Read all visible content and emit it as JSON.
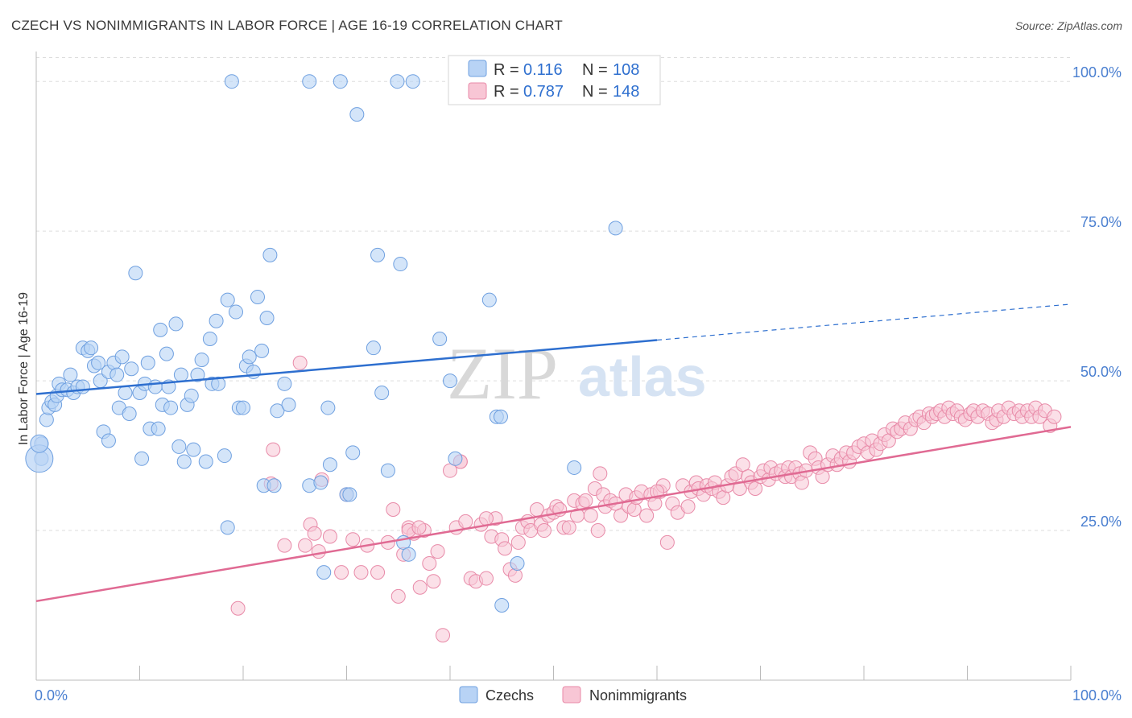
{
  "title": "CZECH VS NONIMMIGRANTS IN LABOR FORCE | AGE 16-19 CORRELATION CHART",
  "source": "Source: ZipAtlas.com",
  "watermark": {
    "zip": "ZIP",
    "atlas": "atlas"
  },
  "colors": {
    "czech_fill": "#b8d3f5",
    "czech_stroke": "#6fa0e0",
    "czech_line": "#2e6fcf",
    "nonimm_fill": "#f8c6d5",
    "nonimm_stroke": "#e88aa8",
    "nonimm_line": "#e06a93",
    "tick_text": "#4a7fd0",
    "grid": "#dddddd"
  },
  "legend": {
    "rows": [
      {
        "r_label": "R =",
        "r_value": "0.116",
        "n_label": "N =",
        "n_value": "108"
      },
      {
        "r_label": "R =",
        "r_value": "0.787",
        "n_label": "N =",
        "n_value": "148"
      }
    ]
  },
  "chart_data": {
    "type": "scatter",
    "title": "CZECH VS NONIMMIGRANTS IN LABOR FORCE | AGE 16-19 CORRELATION CHART",
    "xlabel": "",
    "ylabel": "In Labor Force | Age 16-19",
    "xlim": [
      0,
      100
    ],
    "ylim": [
      0,
      105
    ],
    "x_tick_labels": [
      {
        "value": 0,
        "label": "0.0%"
      },
      {
        "value": 100,
        "label": "100.0%"
      }
    ],
    "y_tick_labels": [
      {
        "value": 25,
        "label": "25.0%"
      },
      {
        "value": 50,
        "label": "50.0%"
      },
      {
        "value": 75,
        "label": "75.0%"
      },
      {
        "value": 100,
        "label": "100.0%"
      }
    ],
    "grid": true,
    "legend_position": "top-center",
    "series": [
      {
        "name": "Czechs",
        "trend": {
          "x0": 0,
          "y0": 47.8,
          "x1": 60,
          "y1": 56.8,
          "dash_to_x": 100,
          "dash_to_y": 62.8
        },
        "points": [
          [
            0.5,
            37.0
          ],
          [
            0.5,
            39.5
          ],
          [
            1,
            43.5
          ],
          [
            1.2,
            45.5
          ],
          [
            1.5,
            46.5
          ],
          [
            1.8,
            46
          ],
          [
            2,
            47.5
          ],
          [
            2.2,
            49.5
          ],
          [
            2.5,
            48.5
          ],
          [
            3,
            48.5
          ],
          [
            3.3,
            51
          ],
          [
            3.6,
            48
          ],
          [
            4,
            49
          ],
          [
            4.5,
            49
          ],
          [
            4.5,
            55.5
          ],
          [
            5,
            55
          ],
          [
            5.3,
            55.5
          ],
          [
            5.6,
            52.5
          ],
          [
            6,
            53
          ],
          [
            6.2,
            50
          ],
          [
            6.5,
            41.5
          ],
          [
            7,
            51.5
          ],
          [
            7,
            40
          ],
          [
            7.5,
            53
          ],
          [
            7.8,
            51
          ],
          [
            8,
            45.5
          ],
          [
            8.3,
            54
          ],
          [
            8.6,
            48
          ],
          [
            9,
            44.5
          ],
          [
            9.2,
            52
          ],
          [
            9.6,
            68
          ],
          [
            10,
            48
          ],
          [
            10.2,
            37
          ],
          [
            10.5,
            49.5
          ],
          [
            10.8,
            53
          ],
          [
            11,
            42
          ],
          [
            11.5,
            49
          ],
          [
            11.8,
            42
          ],
          [
            12,
            58.5
          ],
          [
            12.2,
            46
          ],
          [
            12.6,
            54.5
          ],
          [
            12.8,
            49
          ],
          [
            13,
            45.5
          ],
          [
            13.5,
            59.5
          ],
          [
            13.8,
            39
          ],
          [
            14,
            51
          ],
          [
            14.3,
            36.5
          ],
          [
            14.6,
            46
          ],
          [
            15,
            47.5
          ],
          [
            15.2,
            38.5
          ],
          [
            15.6,
            51
          ],
          [
            16,
            53.5
          ],
          [
            16.4,
            36.5
          ],
          [
            16.8,
            57
          ],
          [
            17,
            49.5
          ],
          [
            17.4,
            60
          ],
          [
            17.6,
            49.5
          ],
          [
            18.2,
            37.5
          ],
          [
            18.5,
            63.5
          ],
          [
            18.9,
            100
          ],
          [
            19.3,
            61.5
          ],
          [
            19.6,
            45.5
          ],
          [
            20,
            45.5
          ],
          [
            20.3,
            52.5
          ],
          [
            20.6,
            54
          ],
          [
            21,
            51.5
          ],
          [
            21.4,
            64
          ],
          [
            21.8,
            55
          ],
          [
            22,
            32.5
          ],
          [
            22.3,
            60.5
          ],
          [
            22.6,
            71
          ],
          [
            23,
            32.5
          ],
          [
            23.3,
            45
          ],
          [
            24,
            49.5
          ],
          [
            24.4,
            46
          ],
          [
            26.4,
            100
          ],
          [
            26.4,
            32.5
          ],
          [
            27.5,
            33
          ],
          [
            27.8,
            18
          ],
          [
            28.2,
            45.5
          ],
          [
            28.4,
            36
          ],
          [
            29.4,
            100
          ],
          [
            30,
            31
          ],
          [
            30.3,
            31
          ],
          [
            30.6,
            38
          ],
          [
            31,
            94.5
          ],
          [
            32.6,
            55.5
          ],
          [
            33,
            71
          ],
          [
            33.4,
            48
          ],
          [
            34,
            35
          ],
          [
            34.9,
            100
          ],
          [
            35.2,
            69.5
          ],
          [
            35.5,
            23
          ],
          [
            36,
            21
          ],
          [
            36.4,
            100
          ],
          [
            39,
            57
          ],
          [
            40,
            50
          ],
          [
            40.5,
            37
          ],
          [
            43.8,
            63.5
          ],
          [
            44.5,
            44
          ],
          [
            44.9,
            44
          ],
          [
            45,
            12.5
          ],
          [
            46.5,
            19.5
          ],
          [
            52,
            35.5
          ],
          [
            56,
            75.5
          ],
          [
            56.4,
            100
          ],
          [
            59,
            100
          ],
          [
            18.5,
            25.5
          ]
        ],
        "big_points": [
          [
            0.3,
            37.0
          ],
          [
            0.3,
            39.5
          ]
        ]
      },
      {
        "name": "Nonimmigrants",
        "trend": {
          "x0": 0,
          "y0": 13.2,
          "x1": 100,
          "y1": 42.3
        },
        "points": [
          [
            19.5,
            12
          ],
          [
            22.7,
            32.8
          ],
          [
            22.9,
            38.5
          ],
          [
            24,
            22.5
          ],
          [
            25.5,
            53
          ],
          [
            26,
            22.5
          ],
          [
            26.5,
            26
          ],
          [
            26.9,
            24.5
          ],
          [
            27.3,
            21.5
          ],
          [
            27.6,
            33.5
          ],
          [
            28.4,
            24
          ],
          [
            29.5,
            18
          ],
          [
            30,
            31
          ],
          [
            30.6,
            23.5
          ],
          [
            31.4,
            18
          ],
          [
            32,
            22.5
          ],
          [
            33,
            18
          ],
          [
            34,
            23
          ],
          [
            34.5,
            28.5
          ],
          [
            35,
            14
          ],
          [
            35.5,
            21
          ],
          [
            36,
            25.5
          ],
          [
            36.5,
            24.5
          ],
          [
            37.1,
            15.5
          ],
          [
            37.5,
            25
          ],
          [
            38,
            19.5
          ],
          [
            38.4,
            16.5
          ],
          [
            38.8,
            21.5
          ],
          [
            39.3,
            7.5
          ],
          [
            40,
            35
          ],
          [
            40.6,
            25.5
          ],
          [
            41,
            36.5
          ],
          [
            41.5,
            26.5
          ],
          [
            42,
            17
          ],
          [
            42.5,
            16.5
          ],
          [
            43,
            26
          ],
          [
            43.5,
            17
          ],
          [
            44,
            24
          ],
          [
            44.4,
            27
          ],
          [
            45,
            23.5
          ],
          [
            45.3,
            22
          ],
          [
            45.8,
            18.5
          ],
          [
            46.3,
            17.5
          ],
          [
            46.6,
            23
          ],
          [
            47,
            25.5
          ],
          [
            47.5,
            26.5
          ],
          [
            47.8,
            25
          ],
          [
            48.4,
            28.5
          ],
          [
            48.8,
            26
          ],
          [
            49.1,
            25
          ],
          [
            49.5,
            27.5
          ],
          [
            50,
            28
          ],
          [
            50.3,
            29
          ],
          [
            50.6,
            28.5
          ],
          [
            51,
            25.5
          ],
          [
            51.5,
            25.5
          ],
          [
            52,
            30
          ],
          [
            52.3,
            27.5
          ],
          [
            52.8,
            29.5
          ],
          [
            53.1,
            30
          ],
          [
            53.6,
            27.5
          ],
          [
            54,
            32
          ],
          [
            54.3,
            25
          ],
          [
            54.8,
            31
          ],
          [
            55,
            29
          ],
          [
            55.5,
            30
          ],
          [
            56,
            29.5
          ],
          [
            56.5,
            27.5
          ],
          [
            57,
            31
          ],
          [
            57.3,
            29
          ],
          [
            57.8,
            28.5
          ],
          [
            58,
            30.5
          ],
          [
            58.5,
            31.5
          ],
          [
            59,
            27.5
          ],
          [
            59.4,
            31
          ],
          [
            59.8,
            29.5
          ],
          [
            60.3,
            31.5
          ],
          [
            60.6,
            32.5
          ],
          [
            61,
            23
          ],
          [
            61.5,
            29.5
          ],
          [
            62,
            28
          ],
          [
            62.5,
            32.5
          ],
          [
            63,
            29
          ],
          [
            63.3,
            31.5
          ],
          [
            63.8,
            33
          ],
          [
            64,
            32
          ],
          [
            64.5,
            31
          ],
          [
            64.8,
            32.5
          ],
          [
            65.3,
            32
          ],
          [
            65.6,
            33
          ],
          [
            66,
            31.5
          ],
          [
            66.4,
            30.5
          ],
          [
            66.8,
            32.5
          ],
          [
            67.2,
            34
          ],
          [
            67.6,
            34.5
          ],
          [
            68,
            32
          ],
          [
            68.3,
            36
          ],
          [
            68.8,
            34
          ],
          [
            69.1,
            33
          ],
          [
            69.5,
            32
          ],
          [
            70,
            34
          ],
          [
            70.3,
            35
          ],
          [
            70.8,
            33.5
          ],
          [
            71,
            35.5
          ],
          [
            71.5,
            34.5
          ],
          [
            72,
            35
          ],
          [
            72.4,
            34
          ],
          [
            72.7,
            35.5
          ],
          [
            73,
            34
          ],
          [
            73.4,
            35.5
          ],
          [
            73.8,
            34.5
          ],
          [
            74,
            33
          ],
          [
            74.4,
            35
          ],
          [
            74.8,
            38
          ],
          [
            75.3,
            37
          ],
          [
            75.6,
            35.5
          ],
          [
            76,
            34
          ],
          [
            76.5,
            36
          ],
          [
            77,
            37.5
          ],
          [
            77.4,
            36
          ],
          [
            77.8,
            37
          ],
          [
            78.3,
            38
          ],
          [
            78.6,
            36.5
          ],
          [
            79,
            38
          ],
          [
            79.5,
            39
          ],
          [
            80,
            39.5
          ],
          [
            80.4,
            38
          ],
          [
            80.8,
            40
          ],
          [
            81.2,
            38.5
          ],
          [
            81.6,
            39.5
          ],
          [
            82,
            41
          ],
          [
            82.4,
            40
          ],
          [
            82.8,
            42
          ],
          [
            83.2,
            41.5
          ],
          [
            83.6,
            42
          ],
          [
            84,
            43
          ],
          [
            84.5,
            42
          ],
          [
            85,
            43.5
          ],
          [
            85.4,
            44
          ],
          [
            85.8,
            43
          ],
          [
            86.3,
            44.5
          ],
          [
            86.6,
            44
          ],
          [
            87,
            44.5
          ],
          [
            87.4,
            45
          ],
          [
            87.8,
            44
          ],
          [
            88.2,
            45.5
          ],
          [
            88.6,
            44.5
          ],
          [
            89,
            45
          ],
          [
            89.4,
            44
          ],
          [
            89.8,
            43.5
          ],
          [
            90.3,
            44.5
          ],
          [
            90.6,
            45
          ],
          [
            91,
            44
          ],
          [
            91.5,
            45
          ],
          [
            92,
            44.5
          ],
          [
            92.4,
            43
          ],
          [
            92.8,
            43.5
          ],
          [
            93,
            45
          ],
          [
            93.5,
            44
          ],
          [
            94,
            45.5
          ],
          [
            94.5,
            44.5
          ],
          [
            95,
            45
          ],
          [
            95.3,
            44
          ],
          [
            95.8,
            45
          ],
          [
            96.2,
            44
          ],
          [
            96.6,
            45.5
          ],
          [
            97,
            44
          ],
          [
            97.5,
            45
          ],
          [
            98,
            42.5
          ],
          [
            98.4,
            44
          ],
          [
            41,
            36.5
          ],
          [
            36,
            25
          ],
          [
            43.5,
            27
          ],
          [
            54.5,
            34.5
          ],
          [
            60,
            31.5
          ],
          [
            37,
            25.5
          ]
        ]
      }
    ]
  }
}
